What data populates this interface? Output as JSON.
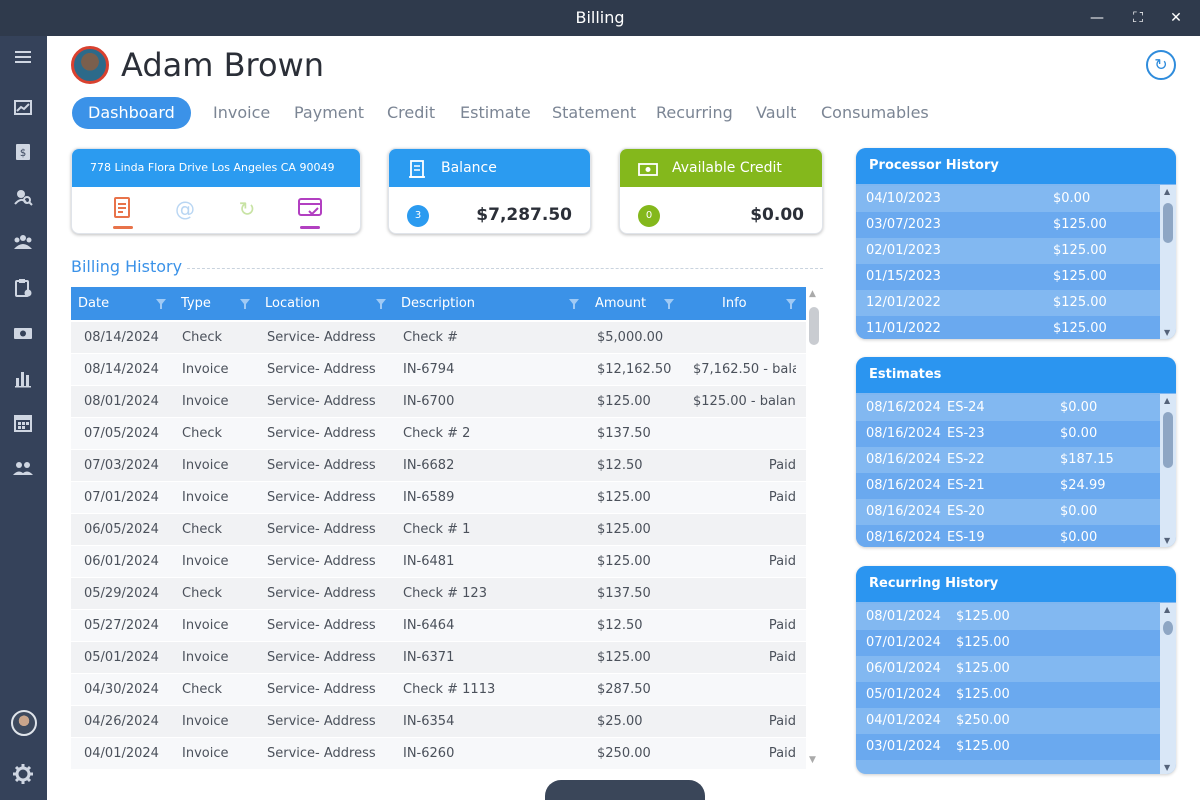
{
  "window": {
    "title": "Billing"
  },
  "customer": {
    "name": "Adam Brown"
  },
  "tabs": [
    "Dashboard",
    "Invoice",
    "Payment",
    "Credit",
    "Estimate",
    "Statement",
    "Recurring",
    "Vault",
    "Consumables"
  ],
  "address_card": {
    "address": "778 Linda Flora Drive Los Angeles CA 90049"
  },
  "balance_card": {
    "label": "Balance",
    "count": "3",
    "amount": "$7,287.50",
    "color": "#2b9bf0"
  },
  "credit_card": {
    "label": "Available Credit",
    "count": "0",
    "amount": "$0.00",
    "color": "#84b81c"
  },
  "billing_history": {
    "title": "Billing History",
    "columns": [
      "Date",
      "Type",
      "Location",
      "Description",
      "Amount",
      "Info"
    ],
    "rows": [
      [
        "08/14/2024",
        "Check",
        "Service- Address",
        "Check #",
        "$5,000.00",
        ""
      ],
      [
        "08/14/2024",
        "Invoice",
        "Service- Address",
        "IN-6794",
        "$12,162.50",
        "$7,162.50 - balance"
      ],
      [
        "08/01/2024",
        "Invoice",
        "Service- Address",
        "IN-6700",
        "$125.00",
        "$125.00 - balance"
      ],
      [
        "07/05/2024",
        "Check",
        "Service- Address",
        "Check # 2",
        "$137.50",
        ""
      ],
      [
        "07/03/2024",
        "Invoice",
        "Service- Address",
        "IN-6682",
        "$12.50",
        "Paid"
      ],
      [
        "07/01/2024",
        "Invoice",
        "Service- Address",
        "IN-6589",
        "$125.00",
        "Paid"
      ],
      [
        "06/05/2024",
        "Check",
        "Service- Address",
        "Check # 1",
        "$125.00",
        ""
      ],
      [
        "06/01/2024",
        "Invoice",
        "Service- Address",
        "IN-6481",
        "$125.00",
        "Paid"
      ],
      [
        "05/29/2024",
        "Check",
        "Service- Address",
        "Check # 123",
        "$137.50",
        ""
      ],
      [
        "05/27/2024",
        "Invoice",
        "Service- Address",
        "IN-6464",
        "$12.50",
        "Paid"
      ],
      [
        "05/01/2024",
        "Invoice",
        "Service- Address",
        "IN-6371",
        "$125.00",
        "Paid"
      ],
      [
        "04/30/2024",
        "Check",
        "Service- Address",
        "Check # 1113",
        "$287.50",
        ""
      ],
      [
        "04/26/2024",
        "Invoice",
        "Service- Address",
        "IN-6354",
        "$25.00",
        "Paid"
      ],
      [
        "04/01/2024",
        "Invoice",
        "Service- Address",
        "IN-6260",
        "$250.00",
        "Paid"
      ]
    ]
  },
  "processor_history": {
    "title": "Processor History",
    "rows": [
      [
        "04/10/2023",
        "$0.00"
      ],
      [
        "03/07/2023",
        "$125.00"
      ],
      [
        "02/01/2023",
        "$125.00"
      ],
      [
        "01/15/2023",
        "$125.00"
      ],
      [
        "12/01/2022",
        "$125.00"
      ],
      [
        "11/01/2022",
        "$125.00"
      ]
    ]
  },
  "estimates": {
    "title": "Estimates",
    "rows": [
      [
        "08/16/2024",
        "ES-24",
        "$0.00"
      ],
      [
        "08/16/2024",
        "ES-23",
        "$0.00"
      ],
      [
        "08/16/2024",
        "ES-22",
        "$187.15"
      ],
      [
        "08/16/2024",
        "ES-21",
        "$24.99"
      ],
      [
        "08/16/2024",
        "ES-20",
        "$0.00"
      ],
      [
        "08/16/2024",
        "ES-19",
        "$0.00"
      ]
    ]
  },
  "recurring_history": {
    "title": "Recurring History",
    "rows": [
      [
        "08/01/2024",
        "$125.00"
      ],
      [
        "07/01/2024",
        "$125.00"
      ],
      [
        "06/01/2024",
        "$125.00"
      ],
      [
        "05/01/2024",
        "$125.00"
      ],
      [
        "04/01/2024",
        "$250.00"
      ],
      [
        "03/01/2024",
        "$125.00"
      ]
    ]
  },
  "sidebar": {
    "icons": [
      "menu-icon",
      "chart-line-icon",
      "billing-icon",
      "search-user-icon",
      "customers-icon",
      "clipboard-settings-icon",
      "cash-icon",
      "bar-chart-icon",
      "calendar-icon",
      "team-icon",
      "avatar",
      "gear-icon"
    ]
  }
}
